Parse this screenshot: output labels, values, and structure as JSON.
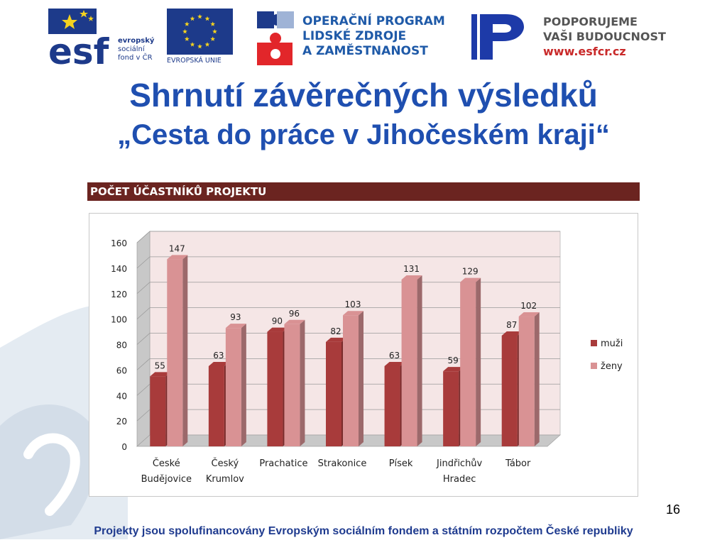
{
  "logos": {
    "esf_text": "esf",
    "esf_lines": [
      "evropský",
      "sociální",
      "fond v ČR"
    ],
    "eu_label": "EVROPSKÁ UNIE",
    "op_lines": [
      "OPERAČNÍ PROGRAM",
      "LIDSKÉ ZDROJE",
      "A ZAMĚSTNANOST"
    ],
    "support_lines": [
      "PODPORUJEME",
      "VAŠI BUDOUCNOST"
    ],
    "support_url": "www.esfcr.cz"
  },
  "title_line1": "Shrnutí závěrečných výsledků",
  "title_line2": "„Cesta do práce v Jihočeském kraji“",
  "chart_header": "POČET ÚČASTNÍKŮ PROJEKTU",
  "chart_data": {
    "type": "bar",
    "categories": [
      [
        "České",
        "Budějovice"
      ],
      [
        "Český",
        "Krumlov"
      ],
      [
        "Prachatice"
      ],
      [
        "Strakonice"
      ],
      [
        "Písek"
      ],
      [
        "Jindřichův",
        "Hradec"
      ],
      [
        "Tábor"
      ]
    ],
    "series": [
      {
        "name": "muži",
        "values": [
          55,
          63,
          90,
          82,
          63,
          59,
          87
        ],
        "color": "#a83b3b"
      },
      {
        "name": "ženy",
        "values": [
          147,
          93,
          96,
          103,
          131,
          129,
          102
        ],
        "color": "#d99294"
      }
    ],
    "ylim": [
      0,
      160
    ],
    "yticks": [
      0,
      20,
      40,
      60,
      80,
      100,
      120,
      140,
      160
    ],
    "grid": true,
    "legend": "right",
    "data_labels": true
  },
  "page_number": "16",
  "footer": "Projekty jsou spolufinancovány Evropským sociálním fondem a státním rozpočtem České republiky"
}
